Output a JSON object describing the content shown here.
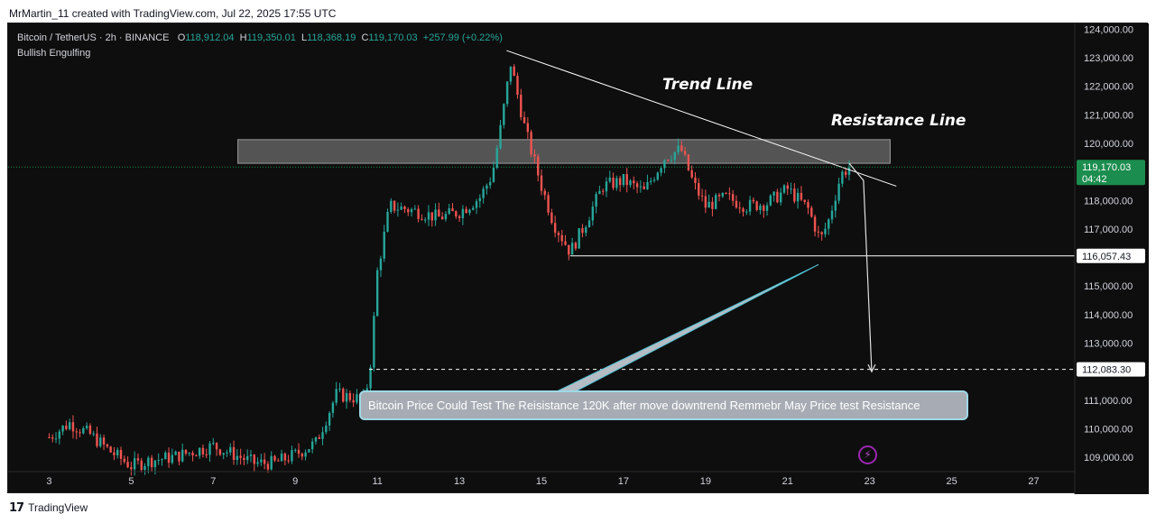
{
  "header": {
    "text": "MrMartin_11 created with TradingView.com, Jul 22, 2025 17:55 UTC"
  },
  "footer": {
    "logo_glyph": "17",
    "brand": "TradingView"
  },
  "legend": {
    "symbol": "Bitcoin / TetherUS · 2h · BINANCE",
    "o_label": "O",
    "o_value": "118,912.04",
    "h_label": "H",
    "h_value": "119,350.01",
    "l_label": "L",
    "l_value": "118,368.19",
    "c_label": "C",
    "c_value": "119,170.03",
    "change": "+257.99 (+0.22%)",
    "indicator": "Bullish Engulfing"
  },
  "annotations": {
    "trend_line": "Trend Line",
    "resistance_line": "Resistance Line",
    "callout": "Bitcoin Price Could Test The Reisistance 120K after move downtrend Remmebr May Price test Resistance",
    "flash_icon": "⚡"
  },
  "price_labels": {
    "current": "119,170.03",
    "countdown": "04:42",
    "level_1": "116,057.43",
    "level_2": "112,083.30"
  },
  "colors": {
    "background": "#0e0e0e",
    "up": "#26a69a",
    "up_bright": "#4caf50",
    "down": "#ef5350",
    "current_price": "#1b8d4e",
    "axis_text": "#d1d4dc",
    "zone": "#808080",
    "callout_line": "#4fc3d6"
  },
  "chart_data": {
    "type": "candlestick",
    "symbol": "Bitcoin / TetherUS",
    "interval": "2h",
    "exchange": "BINANCE",
    "ylim": [
      108500,
      124200
    ],
    "y_ticks": [
      109000,
      110000,
      111000,
      112000,
      113000,
      114000,
      115000,
      116000,
      117000,
      118000,
      119000,
      120000,
      121000,
      122000,
      123000,
      124000
    ],
    "y_tick_labels": [
      "109,000.00",
      "110,000.00",
      "111,000.00",
      "112,000.00",
      "113,000.00",
      "114,000.00",
      "115,000.00",
      "116,000.00",
      "117,000.00",
      "118,000.00",
      "119,000.00",
      "120,000.00",
      "121,000.00",
      "122,000.00",
      "123,000.00",
      "124,000.00"
    ],
    "x_range": [
      2.0,
      28.0
    ],
    "x_ticks": [
      3,
      5,
      7,
      9,
      11,
      13,
      15,
      17,
      19,
      21,
      23,
      25,
      27
    ],
    "x_tick_labels": [
      "3",
      "5",
      "7",
      "9",
      "11",
      "13",
      "15",
      "17",
      "19",
      "21",
      "23",
      "25",
      "27"
    ],
    "x_unit": "day of month (Jul 2025)",
    "price_path": [
      [
        3.0,
        109700
      ],
      [
        3.5,
        110200
      ],
      [
        4.0,
        109800
      ],
      [
        4.5,
        109200
      ],
      [
        5.0,
        108700
      ],
      [
        5.5,
        108900
      ],
      [
        6.0,
        109000
      ],
      [
        6.5,
        109200
      ],
      [
        7.0,
        109400
      ],
      [
        7.5,
        109100
      ],
      [
        8.0,
        108800
      ],
      [
        8.5,
        108800
      ],
      [
        9.0,
        109100
      ],
      [
        9.5,
        109500
      ],
      [
        10.0,
        111200
      ],
      [
        10.4,
        111100
      ],
      [
        10.7,
        111000
      ],
      [
        10.85,
        112500
      ],
      [
        11.0,
        115500
      ],
      [
        11.3,
        117800
      ],
      [
        11.7,
        117700
      ],
      [
        12.0,
        117600
      ],
      [
        12.5,
        117400
      ],
      [
        13.0,
        117600
      ],
      [
        13.5,
        118100
      ],
      [
        13.8,
        118900
      ],
      [
        14.0,
        120500
      ],
      [
        14.25,
        122800
      ],
      [
        14.6,
        120500
      ],
      [
        15.0,
        118500
      ],
      [
        15.3,
        117200
      ],
      [
        15.7,
        116200
      ],
      [
        16.0,
        117000
      ],
      [
        16.5,
        118500
      ],
      [
        17.0,
        118700
      ],
      [
        17.5,
        118300
      ],
      [
        18.0,
        119500
      ],
      [
        18.4,
        119800
      ],
      [
        18.7,
        118600
      ],
      [
        19.0,
        117800
      ],
      [
        19.5,
        118100
      ],
      [
        20.0,
        117800
      ],
      [
        20.5,
        117900
      ],
      [
        21.0,
        118400
      ],
      [
        21.5,
        117700
      ],
      [
        21.8,
        116600
      ],
      [
        22.0,
        117300
      ],
      [
        22.3,
        118900
      ],
      [
        22.5,
        119170
      ]
    ],
    "last_price": 119170.03,
    "countdown": "04:42",
    "levels": [
      {
        "label": "116,057.43",
        "value": 116057.43,
        "style": "solid"
      },
      {
        "label": "112,083.30",
        "value": 112083.3,
        "style": "dashed"
      }
    ],
    "resistance_zone": {
      "x": [
        7.6,
        23.5
      ],
      "y": [
        119300,
        120130
      ]
    },
    "trend_line": {
      "x": [
        14.15,
        23.65
      ],
      "y": [
        123250,
        118500
      ]
    },
    "support_line": {
      "x": [
        15.7,
        28.0
      ],
      "y": [
        116057.43,
        116057.43
      ]
    },
    "projection": [
      [
        22.5,
        119300
      ],
      [
        22.85,
        118700
      ],
      [
        23.05,
        112000
      ]
    ],
    "target_line_start_x": 10.8,
    "callout_pointer": [
      [
        15.2,
        111100
      ],
      [
        21.75,
        115750
      ]
    ]
  }
}
